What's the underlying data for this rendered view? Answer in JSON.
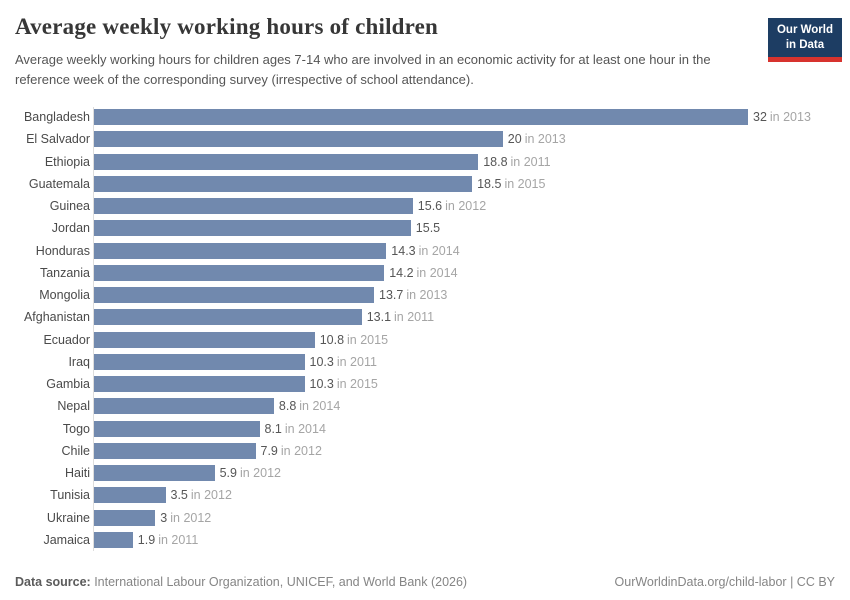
{
  "header": {
    "title": "Average weekly working hours of children",
    "subtitle": "Average weekly working hours for children ages 7-14 who are involved in an economic activity for at least one hour in the reference week of the corresponding survey (irrespective of school attendance).",
    "logo": {
      "line1": "Our World",
      "line2": "in Data",
      "bg_color": "#1d3d63",
      "accent_color": "#d7332e"
    }
  },
  "chart_data": {
    "type": "bar",
    "orientation": "horizontal",
    "title": "Average weekly working hours of children",
    "xlabel": "",
    "ylabel": "",
    "xlim": [
      0,
      32
    ],
    "grid": false,
    "bar_color": "#7189ae",
    "categories": [
      "Bangladesh",
      "El Salvador",
      "Ethiopia",
      "Guatemala",
      "Guinea",
      "Jordan",
      "Honduras",
      "Tanzania",
      "Mongolia",
      "Afghanistan",
      "Ecuador",
      "Iraq",
      "Gambia",
      "Nepal",
      "Togo",
      "Chile",
      "Haiti",
      "Tunisia",
      "Ukraine",
      "Jamaica"
    ],
    "values": [
      32,
      20,
      18.8,
      18.5,
      15.6,
      15.5,
      14.3,
      14.2,
      13.7,
      13.1,
      10.8,
      10.3,
      10.3,
      8.8,
      8.1,
      7.9,
      5.9,
      3.5,
      3,
      1.9
    ],
    "value_labels": [
      "32",
      "20",
      "18.8",
      "18.5",
      "15.6",
      "15.5",
      "14.3",
      "14.2",
      "13.7",
      "13.1",
      "10.8",
      "10.3",
      "10.3",
      "8.8",
      "8.1",
      "7.9",
      "5.9",
      "3.5",
      "3",
      "1.9"
    ],
    "years": [
      "in 2013",
      "in 2013",
      "in 2011",
      "in 2015",
      "in 2012",
      "",
      "in 2014",
      "in 2014",
      "in 2013",
      "in 2011",
      "in 2015",
      "in 2011",
      "in 2015",
      "in 2014",
      "in 2014",
      "in 2012",
      "in 2012",
      "in 2012",
      "in 2012",
      "in 2011"
    ]
  },
  "footer": {
    "source_label": "Data source:",
    "source_text": " International Labour Organization, UNICEF, and World Bank (2026)",
    "link": "OurWorldinData.org/child-labor",
    "separator": " | ",
    "license": "CC BY"
  }
}
